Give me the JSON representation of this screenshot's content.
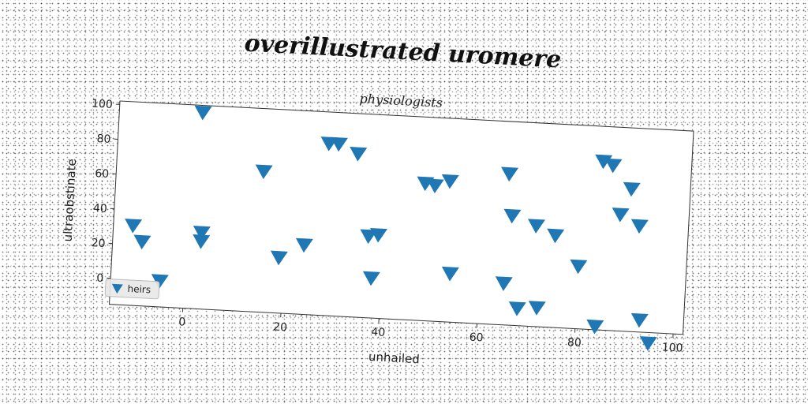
{
  "chart_data": {
    "type": "scatter",
    "title": "overillustrated uromere",
    "subtitle": "physiologists",
    "xlabel": "unhailed",
    "ylabel": "ultraobstinate",
    "xlim": [
      -15,
      102
    ],
    "ylim": [
      -15,
      102
    ],
    "xticks": [
      0,
      20,
      40,
      60,
      80,
      100
    ],
    "yticks": [
      0,
      20,
      40,
      60,
      80,
      100
    ],
    "grid": false,
    "legend_placement": "lower-left",
    "marker": "triangle-down",
    "series": [
      {
        "name": "heirs",
        "color": "#1f77b4",
        "points": [
          [
            -11,
            31
          ],
          [
            -9,
            22
          ],
          [
            -5,
            0
          ],
          [
            2,
            98
          ],
          [
            3,
            29
          ],
          [
            3,
            24
          ],
          [
            15,
            66
          ],
          [
            19,
            17
          ],
          [
            24,
            25
          ],
          [
            28,
            84
          ],
          [
            30,
            84
          ],
          [
            34,
            79
          ],
          [
            37,
            32
          ],
          [
            38,
            8
          ],
          [
            39,
            33
          ],
          [
            48,
            64
          ],
          [
            50,
            63
          ],
          [
            53,
            66
          ],
          [
            54,
            13
          ],
          [
            65,
            72
          ],
          [
            65,
            9
          ],
          [
            66,
            48
          ],
          [
            68,
            -5
          ],
          [
            71,
            43
          ],
          [
            72,
            -4
          ],
          [
            75,
            38
          ],
          [
            80,
            21
          ],
          [
            84,
            -13
          ],
          [
            84,
            82
          ],
          [
            86,
            80
          ],
          [
            88,
            52
          ],
          [
            90,
            67
          ],
          [
            92,
            46
          ],
          [
            93,
            -8
          ],
          [
            95,
            -21
          ]
        ]
      }
    ]
  }
}
